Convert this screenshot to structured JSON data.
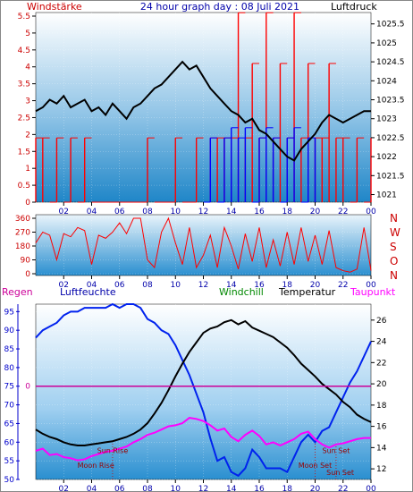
{
  "header": {
    "left_label": "Windstärke",
    "title": "24 hour graph day : 08 Juli 2021",
    "right_label": "Luftdruck"
  },
  "header2": {
    "regen": "Regen",
    "luftfeuchte": "Luftfeuchte",
    "windchill": "Windchill",
    "temperatur": "Temperatur",
    "taupunkt": "Taupunkt"
  },
  "colors": {
    "wind": "#ff0000",
    "gust": "#ff0000",
    "windblue": "#0000ff",
    "pressure": "#000000",
    "humidity": "#0022ee",
    "temperature": "#000000",
    "dewpoint": "#ff00ff",
    "rain": "#cc0099",
    "axis_blue": "#0000cc",
    "axis_red": "#cc0000",
    "windchill_label": "#008800"
  },
  "chart_data": [
    {
      "type": "line",
      "id": "wind_pressure",
      "x_ticks": [
        "02",
        "04",
        "06",
        "08",
        "10",
        "12",
        "14",
        "16",
        "18",
        "20",
        "22",
        "00"
      ],
      "y_left_ticks": [
        "0",
        "0.5",
        "1",
        "1.5",
        "2",
        "2.5",
        "3",
        "3.5",
        "4",
        "4.5",
        "5",
        "5.5"
      ],
      "y_left_range": [
        0,
        5.5
      ],
      "y_right_ticks": [
        "1021",
        "1021.5",
        "1022",
        "1022.5",
        "1023",
        "1023.5",
        "1024",
        "1024.5",
        "1025",
        "1025.5"
      ],
      "y_right_range": [
        1020.8,
        1025.8
      ],
      "series": [
        {
          "axis": "right",
          "color": "pressure",
          "x": [
            0,
            0.5,
            1,
            1.5,
            2,
            2.5,
            3,
            3.5,
            4,
            4.5,
            5,
            5.5,
            6,
            6.5,
            7,
            7.5,
            8,
            8.5,
            9,
            9.5,
            10,
            10.5,
            11,
            11.5,
            12,
            12.5,
            13,
            13.5,
            14,
            14.5,
            15,
            15.5,
            16,
            16.5,
            17,
            17.5,
            18,
            18.5,
            19,
            19.5,
            20,
            20.5,
            21,
            21.5,
            22,
            22.5,
            23,
            23.5,
            24
          ],
          "y": [
            1023.2,
            1023.3,
            1023.5,
            1023.4,
            1023.6,
            1023.3,
            1023.4,
            1023.5,
            1023.2,
            1023.3,
            1023.1,
            1023.4,
            1023.2,
            1023.0,
            1023.3,
            1023.4,
            1023.6,
            1023.8,
            1023.9,
            1024.1,
            1024.3,
            1024.5,
            1024.3,
            1024.4,
            1024.1,
            1023.8,
            1023.6,
            1023.4,
            1023.2,
            1023.1,
            1022.9,
            1023.0,
            1022.7,
            1022.6,
            1022.4,
            1022.2,
            1022.0,
            1021.9,
            1022.2,
            1022.4,
            1022.6,
            1022.9,
            1023.1,
            1023.0,
            1022.9,
            1023.0,
            1023.1,
            1023.2,
            1023.2
          ]
        },
        {
          "axis": "left",
          "color": "wind",
          "x": [
            0,
            0.5,
            1,
            1.5,
            2,
            2.5,
            3,
            3.5,
            4,
            4.5,
            5,
            5.5,
            6,
            6.5,
            7,
            7.5,
            8,
            8.5,
            9,
            9.5,
            10,
            10.5,
            11,
            11.5,
            12,
            12.5,
            13,
            13.5,
            14,
            14.5,
            15,
            15.5,
            16,
            16.5,
            17,
            17.5,
            18,
            18.5,
            19,
            19.5,
            20,
            20.5,
            21,
            21.5,
            22,
            22.5,
            23,
            23.5,
            24
          ],
          "y": [
            1.9,
            1.9,
            0,
            1.9,
            0,
            1.9,
            0,
            1.9,
            0,
            0,
            0,
            0,
            0,
            0,
            0,
            0,
            1.9,
            0,
            0,
            0,
            1.9,
            0,
            0,
            1.9,
            0,
            1.9,
            1.9,
            1.9,
            1.9,
            5.6,
            1.9,
            4.1,
            1.9,
            5.6,
            1.9,
            4.1,
            1.9,
            5.6,
            1.9,
            4.1,
            1.9,
            1.9,
            4.1,
            1.9,
            1.9,
            0,
            1.9,
            0,
            1.9
          ]
        },
        {
          "axis": "left",
          "color": "windblue",
          "x": [
            12,
            12.5,
            13,
            13.5,
            14,
            14.5,
            15,
            15.5,
            16,
            16.5,
            17,
            17.5,
            18,
            18.5,
            19,
            19.5,
            20
          ],
          "y": [
            0,
            1.9,
            0,
            1.9,
            2.2,
            1.9,
            2.2,
            0,
            1.9,
            2.2,
            1.9,
            0,
            1.9,
            2.2,
            0,
            1.9,
            1.9
          ]
        }
      ]
    },
    {
      "type": "line",
      "id": "wind_direction",
      "x_ticks": [
        "02",
        "04",
        "06",
        "08",
        "10",
        "12",
        "14",
        "16",
        "18",
        "20",
        "22",
        "00"
      ],
      "y_ticks": [
        "0",
        "90",
        "180",
        "270",
        "360"
      ],
      "y_range": [
        0,
        360
      ],
      "right_labels": [
        "N",
        "W",
        "S",
        "O",
        "N"
      ],
      "series": [
        {
          "color": "wind",
          "x": [
            0,
            0.5,
            1,
            1.5,
            2,
            2.5,
            3,
            3.5,
            4,
            4.5,
            5,
            5.5,
            6,
            6.5,
            7,
            7.5,
            8,
            8.5,
            9,
            9.5,
            10,
            10.5,
            11,
            11.5,
            12,
            12.5,
            13,
            13.5,
            14,
            14.5,
            15,
            15.5,
            16,
            16.5,
            17,
            17.5,
            18,
            18.5,
            19,
            19.5,
            20,
            20.5,
            21,
            21.5,
            22,
            22.5,
            23,
            23.5,
            24
          ],
          "y": [
            200,
            270,
            250,
            90,
            260,
            240,
            300,
            280,
            60,
            250,
            230,
            270,
            330,
            260,
            360,
            360,
            90,
            40,
            270,
            360,
            200,
            60,
            300,
            40,
            120,
            250,
            40,
            300,
            180,
            30,
            260,
            80,
            300,
            40,
            220,
            50,
            270,
            60,
            300,
            80,
            250,
            60,
            280,
            40,
            20,
            10,
            30,
            300,
            20
          ]
        }
      ]
    },
    {
      "type": "line",
      "id": "temp_humidity",
      "x_ticks": [
        "02",
        "04",
        "06",
        "08",
        "10",
        "12",
        "14",
        "16",
        "18",
        "20",
        "22",
        "00"
      ],
      "y_left_ticks": [
        "50",
        "55",
        "60",
        "65",
        "70",
        "75",
        "80",
        "85",
        "90",
        "95"
      ],
      "y_left_range": [
        50,
        97
      ],
      "y_right_ticks": [
        "12",
        "14",
        "16",
        "18",
        "20",
        "22",
        "24",
        "26"
      ],
      "y_right_range": [
        11,
        27.5
      ],
      "rain_label": "0",
      "annotations": [
        {
          "text": "Sun Rise",
          "x": 5.5,
          "y": 13.5
        },
        {
          "text": "Moon Rise",
          "x": 4.3,
          "y": 12.1
        },
        {
          "text": "Sun Set",
          "x": 21.5,
          "y": 13.5
        },
        {
          "text": "Moon Set",
          "x": 20.0,
          "y": 12.1
        },
        {
          "text": "Sun Set",
          "x": 21.8,
          "y": 11.4
        }
      ],
      "series": [
        {
          "name": "Luftfeuchte",
          "axis": "left",
          "color": "humidity",
          "x": [
            0,
            0.5,
            1,
            1.5,
            2,
            2.5,
            3,
            3.5,
            4,
            4.5,
            5,
            5.5,
            6,
            6.5,
            7,
            7.5,
            8,
            8.5,
            9,
            9.5,
            10,
            10.5,
            11,
            11.5,
            12,
            12.5,
            13,
            13.5,
            14,
            14.5,
            15,
            15.5,
            16,
            16.5,
            17,
            17.5,
            18,
            18.5,
            19,
            19.5,
            20,
            20.5,
            21,
            21.5,
            22,
            22.5,
            23,
            23.5,
            24
          ],
          "y": [
            88,
            90,
            91,
            92,
            94,
            95,
            95,
            96,
            96,
            96,
            96,
            97,
            96,
            97,
            97,
            96,
            93,
            92,
            90,
            89,
            86,
            82,
            78,
            73,
            68,
            61,
            55,
            56,
            52,
            51,
            53,
            58,
            56,
            53,
            53,
            53,
            52,
            56,
            60,
            62,
            60,
            63,
            64,
            68,
            72,
            76,
            79,
            83,
            87
          ]
        },
        {
          "name": "Temperatur",
          "axis": "right",
          "color": "temperature",
          "x": [
            0,
            0.5,
            1,
            1.5,
            2,
            2.5,
            3,
            3.5,
            4,
            4.5,
            5,
            5.5,
            6,
            6.5,
            7,
            7.5,
            8,
            8.5,
            9,
            9.5,
            10,
            10.5,
            11,
            11.5,
            12,
            12.5,
            13,
            13.5,
            14,
            14.5,
            15,
            15.5,
            16,
            16.5,
            17,
            17.5,
            18,
            18.5,
            19,
            19.5,
            20,
            20.5,
            21,
            21.5,
            22,
            22.5,
            23,
            23.5,
            24
          ],
          "y": [
            15.7,
            15.3,
            15.0,
            14.8,
            14.5,
            14.3,
            14.2,
            14.2,
            14.3,
            14.4,
            14.5,
            14.6,
            14.8,
            15.0,
            15.3,
            15.7,
            16.3,
            17.2,
            18.2,
            19.4,
            20.7,
            21.9,
            23.0,
            23.9,
            24.8,
            25.2,
            25.4,
            25.8,
            26.0,
            25.6,
            25.9,
            25.3,
            25.0,
            24.7,
            24.4,
            23.9,
            23.4,
            22.7,
            21.9,
            21.3,
            20.7,
            20.0,
            19.5,
            19.0,
            18.3,
            17.8,
            17.1,
            16.7,
            16.4
          ]
        },
        {
          "name": "Taupunkt",
          "axis": "right",
          "color": "dewpoint",
          "x": [
            0,
            0.5,
            1,
            1.5,
            2,
            2.5,
            3,
            3.5,
            4,
            4.5,
            5,
            5.5,
            6,
            6.5,
            7,
            7.5,
            8,
            8.5,
            9,
            9.5,
            10,
            10.5,
            11,
            11.5,
            12,
            12.5,
            13,
            13.5,
            14,
            14.5,
            15,
            15.5,
            16,
            16.5,
            17,
            17.5,
            18,
            18.5,
            19,
            19.5,
            20,
            20.5,
            21,
            21.5,
            22,
            22.5,
            23,
            23.5,
            24
          ],
          "y": [
            13.7,
            13.9,
            13.3,
            13.4,
            13.1,
            13.0,
            12.8,
            12.9,
            13.2,
            13.4,
            13.6,
            13.7,
            13.9,
            14.1,
            14.5,
            14.8,
            15.2,
            15.4,
            15.7,
            16.0,
            16.1,
            16.3,
            16.8,
            16.7,
            16.5,
            16.1,
            15.6,
            15.8,
            15.0,
            14.6,
            15.2,
            15.6,
            15.1,
            14.3,
            14.5,
            14.2,
            14.5,
            14.8,
            15.3,
            15.5,
            14.8,
            14.3,
            14.0,
            14.3,
            14.4,
            14.6,
            14.8,
            14.9,
            14.9
          ]
        },
        {
          "name": "Regen",
          "axis": "rain",
          "color": "rain",
          "x": [
            0,
            24
          ],
          "y": [
            0,
            0
          ]
        }
      ]
    }
  ]
}
